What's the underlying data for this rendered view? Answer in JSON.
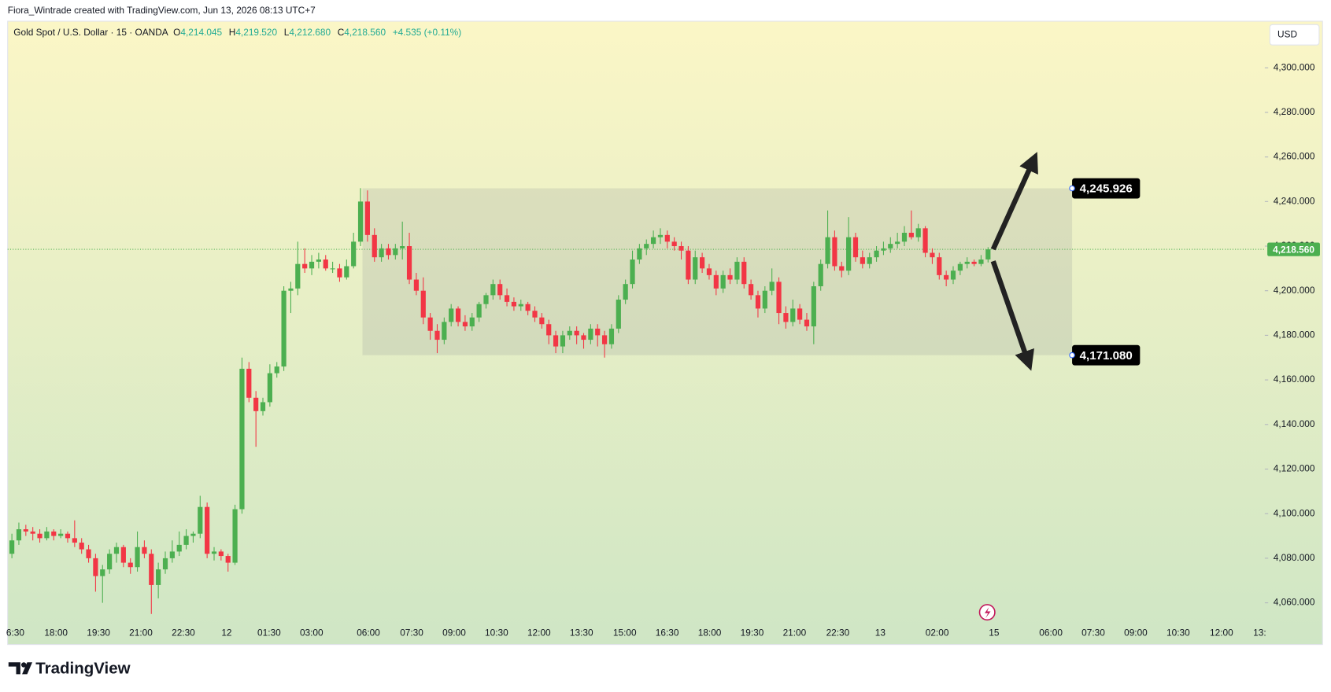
{
  "header": "Fiora_Wintrade created with TradingView.com, Jun 13, 2026 08:13 UTC+7",
  "footer": "TradingView",
  "chart_data": {
    "type": "candlestick",
    "legend": {
      "symbol": "Gold Spot / U.S. Dollar · 15 · OANDA",
      "o": "O",
      "open": "4,214.045",
      "h": "H",
      "high": "4,219.520",
      "l": "L",
      "low": "4,212.680",
      "c": "C",
      "close": "4,218.560",
      "change": "+4.535 (+0.11%)"
    },
    "currency": "USD",
    "up_color": "#4caf50",
    "down_color": "#f23645",
    "x_labels": [
      "6:30",
      "18:00",
      "19:30",
      "21:00",
      "22:30",
      "12",
      "01:30",
      "03:00",
      "06:00",
      "07:30",
      "09:00",
      "10:30",
      "12:00",
      "13:30",
      "15:00",
      "16:30",
      "18:00",
      "19:30",
      "21:00",
      "22:30",
      "13",
      "02:00",
      "15",
      "06:00",
      "07:30",
      "09:00",
      "10:30",
      "12:00",
      "13:"
    ],
    "ylim": [
      4041.3,
      4320.9
    ],
    "yticks": [
      {
        "value": 4060,
        "label": "4,060.000"
      },
      {
        "value": 4080,
        "label": "4,080.000"
      },
      {
        "value": 4100,
        "label": "4,100.000"
      },
      {
        "value": 4120,
        "label": "4,120.000"
      },
      {
        "value": 4140,
        "label": "4,140.000"
      },
      {
        "value": 4160,
        "label": "4,160.000"
      },
      {
        "value": 4180,
        "label": "4,180.000"
      },
      {
        "value": 4200,
        "label": "4,200.000"
      },
      {
        "value": 4220,
        "label": "4,220.000"
      },
      {
        "value": 4240,
        "label": "4,240.000"
      },
      {
        "value": 4260,
        "label": "4,260.000"
      },
      {
        "value": 4280,
        "label": "4,280.000"
      },
      {
        "value": 4300,
        "label": "4,300.000"
      }
    ],
    "last_price": {
      "value": 4218.56,
      "label": "4,218.560"
    },
    "range_box": [
      {
        "value": 4245.926,
        "label": "4,245.926"
      },
      {
        "value": 4171.08,
        "label": "4,171.080"
      }
    ],
    "candles": [
      [
        4082,
        4091,
        4080,
        4088
      ],
      [
        4088,
        4096,
        4086,
        4093
      ],
      [
        4093,
        4095,
        4090,
        4092
      ],
      [
        4092,
        4094,
        4088,
        4091
      ],
      [
        4091,
        4093,
        4087,
        4089
      ],
      [
        4089,
        4094,
        4088,
        4092
      ],
      [
        4092,
        4093,
        4088,
        4090
      ],
      [
        4090,
        4093,
        4089,
        4091
      ],
      [
        4091,
        4092,
        4087,
        4089
      ],
      [
        4089,
        4097,
        4085,
        4087
      ],
      [
        4087,
        4089,
        4082,
        4084
      ],
      [
        4084,
        4086,
        4078,
        4080
      ],
      [
        4080,
        4082,
        4065,
        4072
      ],
      [
        4072,
        4077,
        4060,
        4075
      ],
      [
        4075,
        4084,
        4073,
        4082
      ],
      [
        4082,
        4087,
        4078,
        4085
      ],
      [
        4085,
        4086,
        4076,
        4078
      ],
      [
        4078,
        4080,
        4073,
        4076
      ],
      [
        4076,
        4092,
        4074,
        4085
      ],
      [
        4085,
        4088,
        4080,
        4082
      ],
      [
        4082,
        4084,
        4055,
        4068
      ],
      [
        4068,
        4078,
        4062,
        4075
      ],
      [
        4075,
        4083,
        4073,
        4080
      ],
      [
        4080,
        4088,
        4078,
        4083
      ],
      [
        4083,
        4092,
        4081,
        4086
      ],
      [
        4086,
        4093,
        4084,
        4090
      ],
      [
        4090,
        4092,
        4087,
        4091
      ],
      [
        4091,
        4108,
        4089,
        4103
      ],
      [
        4103,
        4105,
        4080,
        4082
      ],
      [
        4082,
        4085,
        4079,
        4083
      ],
      [
        4083,
        4084,
        4079,
        4081
      ],
      [
        4081,
        4082,
        4074,
        4078
      ],
      [
        4078,
        4104,
        4077,
        4102
      ],
      [
        4102,
        4170,
        4100,
        4165
      ],
      [
        4165,
        4168,
        4150,
        4152
      ],
      [
        4152,
        4155,
        4130,
        4146
      ],
      [
        4146,
        4152,
        4144,
        4150
      ],
      [
        4150,
        4167,
        4148,
        4163
      ],
      [
        4163,
        4168,
        4161,
        4166
      ],
      [
        4166,
        4202,
        4164,
        4200
      ],
      [
        4200,
        4204,
        4190,
        4201
      ],
      [
        4201,
        4222,
        4198,
        4212
      ],
      [
        4212,
        4219,
        4208,
        4210
      ],
      [
        4210,
        4216,
        4207,
        4213
      ],
      [
        4213,
        4217,
        4210,
        4214
      ],
      [
        4214,
        4216,
        4209,
        4210
      ],
      [
        4210,
        4213,
        4208,
        4210
      ],
      [
        4210,
        4212,
        4204,
        4206
      ],
      [
        4206,
        4214,
        4205,
        4211
      ],
      [
        4211,
        4226,
        4210,
        4222
      ],
      [
        4222,
        4246,
        4220,
        4240
      ],
      [
        4240,
        4245,
        4222,
        4225
      ],
      [
        4225,
        4228,
        4213,
        4215
      ],
      [
        4215,
        4221,
        4213,
        4219
      ],
      [
        4219,
        4221,
        4214,
        4216
      ],
      [
        4216,
        4221,
        4214,
        4219
      ],
      [
        4219,
        4231,
        4214,
        4220
      ],
      [
        4220,
        4226,
        4203,
        4205
      ],
      [
        4205,
        4208,
        4198,
        4200
      ],
      [
        4200,
        4206,
        4185,
        4188
      ],
      [
        4188,
        4190,
        4178,
        4182
      ],
      [
        4182,
        4185,
        4172,
        4178
      ],
      [
        4178,
        4188,
        4176,
        4186
      ],
      [
        4186,
        4194,
        4184,
        4192
      ],
      [
        4192,
        4193,
        4184,
        4186
      ],
      [
        4186,
        4189,
        4182,
        4184
      ],
      [
        4184,
        4190,
        4182,
        4188
      ],
      [
        4188,
        4195,
        4186,
        4194
      ],
      [
        4194,
        4199,
        4192,
        4198
      ],
      [
        4198,
        4205,
        4196,
        4203
      ],
      [
        4203,
        4205,
        4196,
        4198
      ],
      [
        4198,
        4201,
        4193,
        4195
      ],
      [
        4195,
        4197,
        4191,
        4193
      ],
      [
        4193,
        4196,
        4191,
        4194
      ],
      [
        4194,
        4195,
        4189,
        4191
      ],
      [
        4191,
        4193,
        4186,
        4188
      ],
      [
        4188,
        4190,
        4183,
        4185
      ],
      [
        4185,
        4187,
        4176,
        4180
      ],
      [
        4180,
        4182,
        4172,
        4175
      ],
      [
        4175,
        4182,
        4172,
        4180
      ],
      [
        4180,
        4184,
        4178,
        4182
      ],
      [
        4182,
        4184,
        4176,
        4180
      ],
      [
        4180,
        4181,
        4174,
        4178
      ],
      [
        4178,
        4185,
        4176,
        4183
      ],
      [
        4183,
        4185,
        4175,
        4180
      ],
      [
        4180,
        4182,
        4170,
        4176
      ],
      [
        4176,
        4185,
        4174,
        4183
      ],
      [
        4183,
        4198,
        4181,
        4196
      ],
      [
        4196,
        4205,
        4194,
        4203
      ],
      [
        4203,
        4218,
        4201,
        4214
      ],
      [
        4214,
        4221,
        4212,
        4219
      ],
      [
        4219,
        4223,
        4216,
        4221
      ],
      [
        4221,
        4227,
        4219,
        4224
      ],
      [
        4224,
        4228,
        4221,
        4225
      ],
      [
        4225,
        4227,
        4219,
        4222
      ],
      [
        4222,
        4224,
        4218,
        4220
      ],
      [
        4220,
        4222,
        4214,
        4218
      ],
      [
        4218,
        4220,
        4203,
        4205
      ],
      [
        4205,
        4218,
        4203,
        4215
      ],
      [
        4215,
        4217,
        4208,
        4210
      ],
      [
        4210,
        4212,
        4205,
        4207
      ],
      [
        4207,
        4209,
        4198,
        4201
      ],
      [
        4201,
        4209,
        4199,
        4207
      ],
      [
        4207,
        4210,
        4203,
        4205
      ],
      [
        4205,
        4215,
        4203,
        4213
      ],
      [
        4213,
        4215,
        4201,
        4203
      ],
      [
        4203,
        4205,
        4196,
        4198
      ],
      [
        4198,
        4200,
        4188,
        4192
      ],
      [
        4192,
        4202,
        4190,
        4200
      ],
      [
        4200,
        4210,
        4198,
        4204
      ],
      [
        4204,
        4206,
        4185,
        4190
      ],
      [
        4190,
        4193,
        4183,
        4186
      ],
      [
        4186,
        4196,
        4184,
        4192
      ],
      [
        4192,
        4194,
        4185,
        4187
      ],
      [
        4187,
        4190,
        4182,
        4184
      ],
      [
        4184,
        4204,
        4176,
        4202
      ],
      [
        4202,
        4214,
        4200,
        4212
      ],
      [
        4212,
        4236,
        4210,
        4224
      ],
      [
        4224,
        4227,
        4209,
        4211
      ],
      [
        4211,
        4213,
        4206,
        4209
      ],
      [
        4209,
        4233,
        4207,
        4224
      ],
      [
        4224,
        4226,
        4213,
        4215
      ],
      [
        4215,
        4218,
        4210,
        4212
      ],
      [
        4212,
        4217,
        4210,
        4215
      ],
      [
        4215,
        4220,
        4213,
        4218
      ],
      [
        4218,
        4222,
        4216,
        4219
      ],
      [
        4219,
        4224,
        4217,
        4221
      ],
      [
        4221,
        4226,
        4219,
        4222
      ],
      [
        4222,
        4229,
        4220,
        4226
      ],
      [
        4226,
        4236,
        4223,
        4224
      ],
      [
        4224,
        4230,
        4222,
        4228
      ],
      [
        4228,
        4229,
        4215,
        4217
      ],
      [
        4217,
        4219,
        4212,
        4215
      ],
      [
        4215,
        4217,
        4205,
        4207
      ],
      [
        4207,
        4209,
        4202,
        4205
      ],
      [
        4205,
        4211,
        4203,
        4209
      ],
      [
        4209,
        4213,
        4207,
        4212
      ],
      [
        4212,
        4215,
        4210,
        4213
      ],
      [
        4213,
        4214,
        4211,
        4212
      ],
      [
        4212,
        4216,
        4211,
        4214
      ],
      [
        4214.045,
        4219.52,
        4212.68,
        4218.56
      ]
    ]
  }
}
